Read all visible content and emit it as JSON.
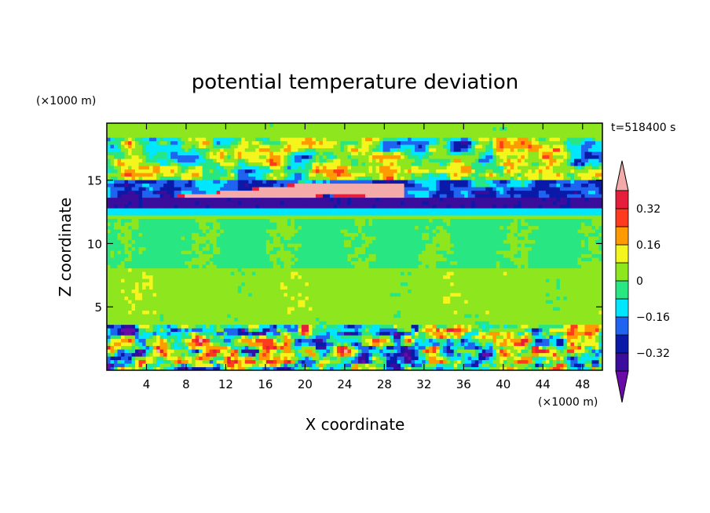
{
  "chart_data": {
    "type": "heatmap",
    "title": "potential temperature deviation",
    "xlabel": "X coordinate",
    "ylabel": "Z coordinate",
    "x_unit_label": "(×1000 m)",
    "y_unit_label": "(×1000 m)",
    "time_label": "t=518400 s",
    "xlim": [
      0,
      50
    ],
    "ylim": [
      0,
      19.5
    ],
    "x_ticks": [
      4,
      8,
      12,
      16,
      20,
      24,
      28,
      32,
      36,
      40,
      44,
      48
    ],
    "y_ticks": [
      5,
      10,
      15
    ],
    "colorbar": {
      "levels": [
        -0.4,
        -0.32,
        -0.24,
        -0.16,
        -0.08,
        0,
        0.08,
        0.16,
        0.24,
        0.32,
        0.4
      ],
      "tick_labels": [
        "0.32",
        "0.16",
        "0",
        "−0.16",
        "−0.32"
      ],
      "tick_values": [
        0.32,
        0.16,
        0,
        -0.16,
        -0.32
      ],
      "colors": [
        "#6a0aa8",
        "#3a0d9c",
        "#0a1aa8",
        "#1e64f0",
        "#00e6ff",
        "#28e682",
        "#8ee61e",
        "#f5f51e",
        "#ff9a00",
        "#ff3a1e",
        "#e61e3c",
        "#f5aaaa"
      ],
      "extend": "both"
    },
    "bands": [
      {
        "z": [
          0,
          3.6
        ],
        "character": "strong mixed positive and negative anomalies"
      },
      {
        "z": [
          3.6,
          12.2
        ],
        "character": "near zero, slightly positive and slightly negative"
      },
      {
        "z": [
          12.5,
          13.5
        ],
        "value": -0.3
      },
      {
        "z": [
          13.5,
          15.2
        ],
        "character": "tilted positive layer up to above 0.4 with negative patches"
      },
      {
        "z": [
          15.2,
          19.5
        ],
        "character": "mixed anomalies, negative and positive cells"
      }
    ]
  }
}
